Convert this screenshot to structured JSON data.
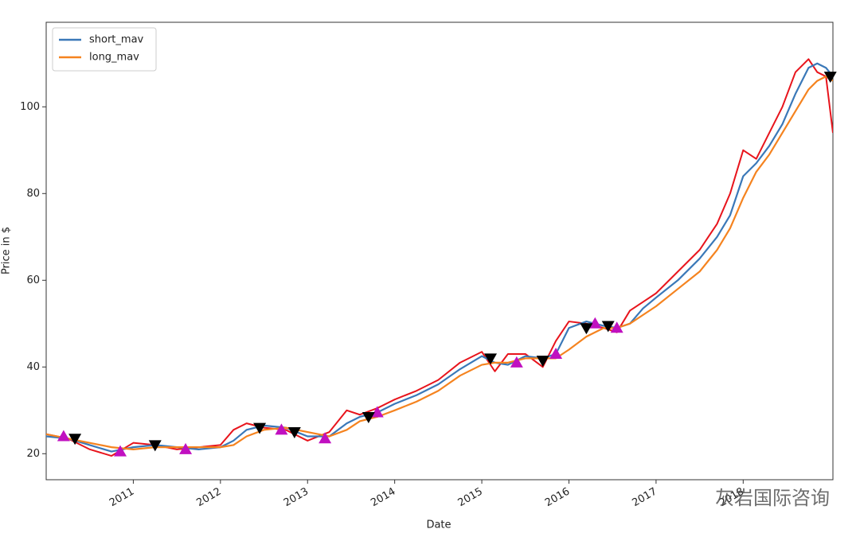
{
  "chart_data": {
    "type": "line",
    "xlabel": "Date",
    "ylabel": "Price in $",
    "xlim": [
      2010.0,
      2019.03
    ],
    "ylim": [
      14,
      119.5
    ],
    "xticks": [
      2011,
      2012,
      2013,
      2014,
      2015,
      2016,
      2017,
      2018
    ],
    "yticks": [
      20,
      40,
      60,
      80,
      100
    ],
    "legend": "upper left",
    "x": [
      2010.0,
      2010.25,
      2010.5,
      2010.75,
      2011.0,
      2011.25,
      2011.5,
      2011.75,
      2012.0,
      2012.15,
      2012.3,
      2012.5,
      2012.75,
      2013.0,
      2013.25,
      2013.45,
      2013.6,
      2013.8,
      2014.0,
      2014.25,
      2014.5,
      2014.75,
      2015.0,
      2015.15,
      2015.3,
      2015.5,
      2015.7,
      2015.85,
      2016.0,
      2016.2,
      2016.4,
      2016.55,
      2016.7,
      2016.85,
      2017.0,
      2017.25,
      2017.5,
      2017.7,
      2017.85,
      2018.0,
      2018.15,
      2018.3,
      2018.45,
      2018.6,
      2018.75,
      2018.85,
      2018.95,
      2019.03
    ],
    "series": [
      {
        "color": "#e8141c",
        "values": [
          24.5,
          23.5,
          21,
          19.5,
          22.5,
          22,
          21,
          21.5,
          22,
          25.5,
          27,
          26,
          25.5,
          23,
          25,
          30,
          29,
          30.5,
          32.5,
          34.5,
          37,
          41,
          43.5,
          39,
          43,
          43,
          40,
          46,
          50.5,
          50,
          49,
          48,
          53,
          55,
          57,
          62,
          67,
          73,
          80,
          90,
          88,
          94,
          100,
          108,
          111,
          108,
          107,
          94
        ]
      },
      {
        "name": "short_mav",
        "color": "#3a78b8",
        "values": [
          24,
          23.5,
          22,
          20.5,
          21.5,
          22,
          21.5,
          21,
          21.5,
          23,
          25.5,
          26.5,
          26,
          24,
          24,
          27,
          28.5,
          29.5,
          31.5,
          33.5,
          36,
          39.5,
          42.5,
          41,
          40.5,
          42.5,
          42,
          43,
          49,
          50.5,
          49.5,
          49,
          50,
          53.5,
          56,
          60,
          65,
          70,
          75,
          84,
          87,
          91,
          96,
          103,
          109,
          110,
          109,
          107
        ]
      },
      {
        "name": "long_mav",
        "color": "#f5831f",
        "values": [
          24.5,
          23.5,
          22.5,
          21.5,
          21,
          21.5,
          21.5,
          21.5,
          21.5,
          22,
          24,
          25.5,
          26,
          25,
          24,
          25.5,
          27.5,
          28.5,
          30,
          32,
          34.5,
          38,
          40.5,
          41,
          41,
          42,
          42,
          42,
          44,
          47,
          49,
          49,
          50,
          52,
          54,
          58,
          62,
          67,
          72,
          79,
          85,
          89,
          94,
          99,
          104,
          106,
          107,
          106
        ]
      }
    ],
    "markers": [
      {
        "marker": "^",
        "color": "#c010c0",
        "x": [
          2010.2,
          2010.85,
          2011.6,
          2012.7,
          2013.2,
          2013.8,
          2015.4,
          2015.85,
          2016.3,
          2016.55
        ],
        "values": [
          24,
          20.5,
          21,
          25.5,
          23.5,
          29.5,
          41,
          43,
          50,
          49
        ]
      },
      {
        "marker": "v",
        "color": "#000000",
        "x": [
          2010.33,
          2011.25,
          2012.45,
          2012.85,
          2013.7,
          2015.1,
          2015.7,
          2016.2,
          2016.45,
          2019.0
        ],
        "values": [
          23.5,
          22,
          26,
          25,
          28.5,
          42,
          41.5,
          49,
          49.5,
          107
        ]
      }
    ],
    "watermark": "灰岩国际咨询"
  }
}
